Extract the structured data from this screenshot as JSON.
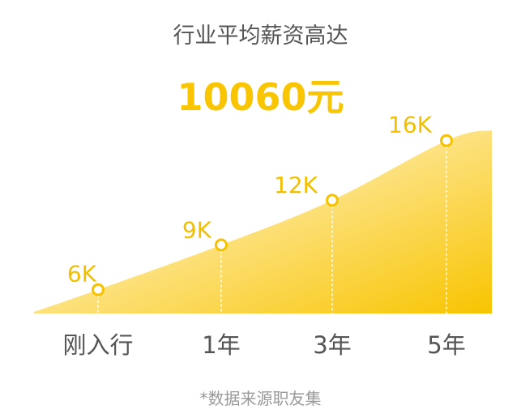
{
  "header": {
    "title": "行业平均薪资高达",
    "headline": "10060元"
  },
  "footnote": "*数据来源职友集",
  "chart_data": {
    "type": "area",
    "categories": [
      "刚入行",
      "1年",
      "3年",
      "5年"
    ],
    "values": [
      6,
      9,
      12,
      16
    ],
    "data_labels": [
      "6K",
      "9K",
      "12K",
      "16K"
    ],
    "unit": "K",
    "ylim": [
      0,
      20
    ],
    "grid": false,
    "legend": "none",
    "colors": {
      "area_top": "#f8c400",
      "area_fade": "#fff6d6",
      "marker": "#f6c200",
      "labels": "#f2be00",
      "axis_text": "#555555"
    }
  }
}
